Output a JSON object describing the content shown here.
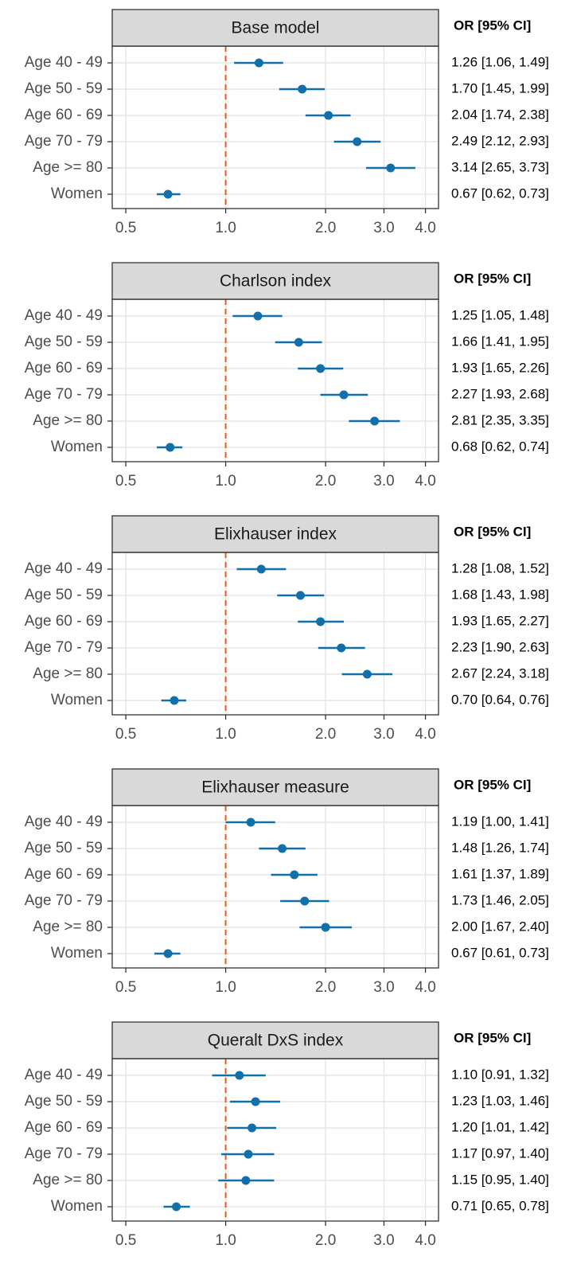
{
  "chart_data": [
    {
      "type": "forest",
      "title": "Base model",
      "table_header": "OR [95% CI]",
      "categories": [
        "Age 40 - 49",
        "Age 50 - 59",
        "Age 60 - 69",
        "Age 70 - 79",
        "Age >= 80",
        "Women"
      ],
      "values": [
        1.26,
        1.7,
        2.04,
        2.49,
        3.14,
        0.67
      ],
      "lower": [
        1.06,
        1.45,
        1.74,
        2.12,
        2.65,
        0.62
      ],
      "upper": [
        1.49,
        1.99,
        2.38,
        2.93,
        3.73,
        0.73
      ],
      "value_labels": [
        "1.26 [1.06, 1.49]",
        "1.70 [1.45, 1.99]",
        "2.04 [1.74, 2.38]",
        "2.49 [2.12, 2.93]",
        "3.14 [2.65, 3.73]",
        "0.67 [0.62, 0.73]"
      ],
      "xlim": [
        0.455,
        4.38
      ],
      "xticks": [
        0.5,
        {
          "value": 1,
          "label": "1.0"
        },
        {
          "value": 2,
          "label": "2.0"
        },
        {
          "value": 3,
          "label": "3.0"
        },
        {
          "value": 4,
          "label": "4.0"
        }
      ],
      "log_x": true,
      "grid": true,
      "color": "#1170aa",
      "reference_line": 1,
      "reference_color": "#e0601a"
    },
    {
      "type": "forest",
      "title": "Charlson index",
      "table_header": "OR [95% CI]",
      "categories": [
        "Age 40 - 49",
        "Age 50 - 59",
        "Age 60 - 69",
        "Age 70 - 79",
        "Age >= 80",
        "Women"
      ],
      "values": [
        1.25,
        1.66,
        1.93,
        2.27,
        2.81,
        0.68
      ],
      "lower": [
        1.05,
        1.41,
        1.65,
        1.93,
        2.35,
        0.62
      ],
      "upper": [
        1.48,
        1.95,
        2.26,
        2.68,
        3.35,
        0.74
      ],
      "value_labels": [
        "1.25 [1.05, 1.48]",
        "1.66 [1.41, 1.95]",
        "1.93 [1.65, 2.26]",
        "2.27 [1.93, 2.68]",
        "2.81 [2.35, 3.35]",
        "0.68 [0.62, 0.74]"
      ],
      "xlim": [
        0.455,
        4.38
      ],
      "xticks": [
        0.5,
        {
          "value": 1,
          "label": "1.0"
        },
        {
          "value": 2,
          "label": "2.0"
        },
        {
          "value": 3,
          "label": "3.0"
        },
        {
          "value": 4,
          "label": "4.0"
        }
      ],
      "log_x": true,
      "grid": true,
      "color": "#1170aa",
      "reference_line": 1,
      "reference_color": "#e0601a"
    },
    {
      "type": "forest",
      "title": "Elixhauser index",
      "table_header": "OR [95% CI]",
      "categories": [
        "Age 40 - 49",
        "Age 50 - 59",
        "Age 60 - 69",
        "Age 70 - 79",
        "Age >= 80",
        "Women"
      ],
      "values": [
        1.28,
        1.68,
        1.93,
        2.23,
        2.67,
        0.7
      ],
      "lower": [
        1.08,
        1.43,
        1.65,
        1.9,
        2.24,
        0.64
      ],
      "upper": [
        1.52,
        1.98,
        2.27,
        2.63,
        3.18,
        0.76
      ],
      "value_labels": [
        "1.28 [1.08, 1.52]",
        "1.68 [1.43, 1.98]",
        "1.93 [1.65, 2.27]",
        "2.23 [1.90, 2.63]",
        "2.67 [2.24, 3.18]",
        "0.70 [0.64, 0.76]"
      ],
      "xlim": [
        0.455,
        4.38
      ],
      "xticks": [
        0.5,
        {
          "value": 1,
          "label": "1.0"
        },
        {
          "value": 2,
          "label": "2.0"
        },
        {
          "value": 3,
          "label": "3.0"
        },
        {
          "value": 4,
          "label": "4.0"
        }
      ],
      "log_x": true,
      "grid": true,
      "color": "#1170aa",
      "reference_line": 1,
      "reference_color": "#e0601a"
    },
    {
      "type": "forest",
      "title": "Elixhauser measure",
      "table_header": "OR [95% CI]",
      "categories": [
        "Age 40 - 49",
        "Age 50 - 59",
        "Age 60 - 69",
        "Age 70 - 79",
        "Age >= 80",
        "Women"
      ],
      "values": [
        1.19,
        1.48,
        1.61,
        1.73,
        2.0,
        0.67
      ],
      "lower": [
        1.0,
        1.26,
        1.37,
        1.46,
        1.67,
        0.61
      ],
      "upper": [
        1.41,
        1.74,
        1.89,
        2.05,
        2.4,
        0.73
      ],
      "value_labels": [
        "1.19 [1.00, 1.41]",
        "1.48 [1.26, 1.74]",
        "1.61 [1.37, 1.89]",
        "1.73 [1.46, 2.05]",
        "2.00 [1.67, 2.40]",
        "0.67 [0.61, 0.73]"
      ],
      "xlim": [
        0.455,
        4.38
      ],
      "xticks": [
        0.5,
        {
          "value": 1,
          "label": "1.0"
        },
        {
          "value": 2,
          "label": "2.0"
        },
        {
          "value": 3,
          "label": "3.0"
        },
        {
          "value": 4,
          "label": "4.0"
        }
      ],
      "log_x": true,
      "grid": true,
      "color": "#1170aa",
      "reference_line": 1,
      "reference_color": "#e0601a"
    },
    {
      "type": "forest",
      "title": "Queralt DxS index",
      "table_header": "OR [95% CI]",
      "categories": [
        "Age 40 - 49",
        "Age 50 - 59",
        "Age 60 - 69",
        "Age 70 - 79",
        "Age >= 80",
        "Women"
      ],
      "values": [
        1.1,
        1.23,
        1.2,
        1.17,
        1.15,
        0.71
      ],
      "lower": [
        0.91,
        1.03,
        1.01,
        0.97,
        0.95,
        0.65
      ],
      "upper": [
        1.32,
        1.46,
        1.42,
        1.4,
        1.4,
        0.78
      ],
      "value_labels": [
        "1.10 [0.91, 1.32]",
        "1.23 [1.03, 1.46]",
        "1.20 [1.01, 1.42]",
        "1.17 [0.97, 1.40]",
        "1.15 [0.95, 1.40]",
        "0.71 [0.65, 0.78]"
      ],
      "xlim": [
        0.455,
        4.38
      ],
      "xticks": [
        0.5,
        {
          "value": 1,
          "label": "1.0"
        },
        {
          "value": 2,
          "label": "2.0"
        },
        {
          "value": 3,
          "label": "3.0"
        },
        {
          "value": 4,
          "label": "4.0"
        }
      ],
      "log_x": true,
      "grid": true,
      "color": "#1170aa",
      "reference_line": 1,
      "reference_color": "#e0601a"
    }
  ]
}
